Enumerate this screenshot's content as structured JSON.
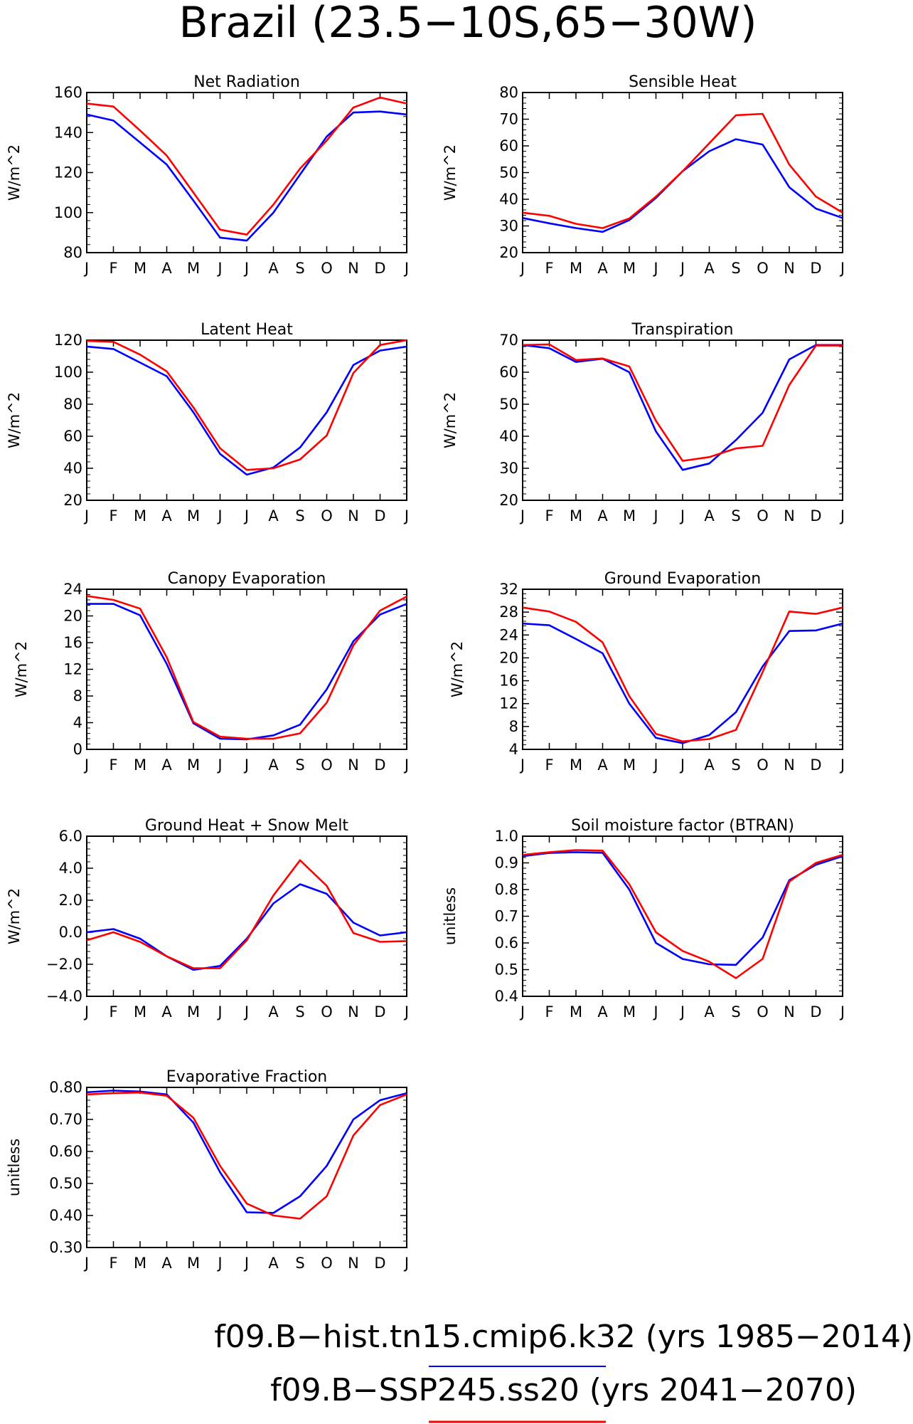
{
  "figure": {
    "title": "Brazil (23.5−10S,65−30W)",
    "colors": {
      "hist": "#0000ff",
      "ssp": "#ff0000",
      "axis": "#000000"
    }
  },
  "legend": [
    {
      "text": "f09.B−hist.tn15.cmip6.k32 (yrs 1985−2014)",
      "color": "#0000ff"
    },
    {
      "text": "f09.B−SSP245.ss20 (yrs 2041−2070)",
      "color": "#ff0000"
    }
  ],
  "chart_data": [
    {
      "type": "line",
      "title": "Net Radiation",
      "ylabel": "W/m^2",
      "categories": [
        "J",
        "F",
        "M",
        "A",
        "M",
        "J",
        "J",
        "A",
        "S",
        "O",
        "N",
        "D",
        "J"
      ],
      "ylim": [
        80,
        160
      ],
      "yticks": [
        80,
        100,
        120,
        140,
        160
      ],
      "ytick_labels": [
        "80",
        "100",
        "120",
        "140",
        "160"
      ],
      "series": [
        {
          "values": [
            149,
            146,
            135,
            124,
            106,
            87.5,
            86,
            100,
            119,
            138,
            150,
            150.5,
            149
          ],
          "color": "#0000ff"
        },
        {
          "values": [
            154.5,
            153,
            141,
            128.5,
            110,
            91.5,
            89,
            104,
            122,
            136,
            152.5,
            157.5,
            154.5
          ],
          "color": "#ff0000"
        }
      ]
    },
    {
      "type": "line",
      "title": "Sensible Heat",
      "ylabel": "W/m^2",
      "categories": [
        "J",
        "F",
        "M",
        "A",
        "M",
        "J",
        "J",
        "A",
        "S",
        "O",
        "N",
        "D",
        "J"
      ],
      "ylim": [
        20,
        80
      ],
      "yticks": [
        20,
        30,
        40,
        50,
        60,
        70,
        80
      ],
      "ytick_labels": [
        "20",
        "30",
        "40",
        "50",
        "60",
        "70",
        "80"
      ],
      "series": [
        {
          "values": [
            33,
            31,
            29.2,
            27.8,
            32.2,
            40.5,
            50.5,
            58,
            62.5,
            60.5,
            44.5,
            36.5,
            33
          ],
          "color": "#0000ff"
        },
        {
          "values": [
            35,
            33.8,
            30.8,
            29.2,
            32.8,
            41,
            50.5,
            61,
            71.5,
            72,
            53,
            41,
            35
          ],
          "color": "#ff0000"
        }
      ]
    },
    {
      "type": "line",
      "title": "Latent Heat",
      "ylabel": "W/m^2",
      "categories": [
        "J",
        "F",
        "M",
        "A",
        "M",
        "J",
        "J",
        "A",
        "S",
        "O",
        "N",
        "D",
        "J"
      ],
      "ylim": [
        20,
        120
      ],
      "yticks": [
        20,
        40,
        60,
        80,
        100,
        120
      ],
      "ytick_labels": [
        "20",
        "40",
        "60",
        "80",
        "100",
        "120"
      ],
      "series": [
        {
          "values": [
            116,
            114.5,
            106,
            97.5,
            75,
            49,
            36,
            40.5,
            53,
            75,
            104.5,
            113.5,
            116
          ],
          "color": "#0000ff"
        },
        {
          "values": [
            119.5,
            119,
            111,
            100.5,
            78,
            52.5,
            39,
            40,
            45.5,
            60.5,
            99.5,
            117,
            120
          ],
          "color": "#ff0000"
        }
      ]
    },
    {
      "type": "line",
      "title": "Transpiration",
      "ylabel": "W/m^2",
      "categories": [
        "J",
        "F",
        "M",
        "A",
        "M",
        "J",
        "J",
        "A",
        "S",
        "O",
        "N",
        "D",
        "J"
      ],
      "ylim": [
        20,
        70
      ],
      "yticks": [
        20,
        30,
        40,
        50,
        60,
        70
      ],
      "ytick_labels": [
        "20",
        "30",
        "40",
        "50",
        "60",
        "70"
      ],
      "series": [
        {
          "values": [
            68.5,
            67.5,
            63.2,
            64.2,
            60,
            41.5,
            29.5,
            31.5,
            38.8,
            47.3,
            64,
            68.5,
            68.5
          ],
          "color": "#0000ff"
        },
        {
          "values": [
            68.5,
            68.7,
            63.8,
            64.3,
            61.8,
            44.8,
            32.3,
            33.5,
            36.2,
            37,
            56,
            68.3,
            68.3
          ],
          "color": "#ff0000"
        }
      ]
    },
    {
      "type": "line",
      "title": "Canopy Evaporation",
      "ylabel": "W/m^2",
      "categories": [
        "J",
        "F",
        "M",
        "A",
        "M",
        "J",
        "J",
        "A",
        "S",
        "O",
        "N",
        "D",
        "J"
      ],
      "ylim": [
        0,
        24
      ],
      "yticks": [
        0,
        4,
        8,
        12,
        16,
        20,
        24
      ],
      "ytick_labels": [
        "0",
        "4",
        "8",
        "12",
        "16",
        "20",
        "24"
      ],
      "series": [
        {
          "values": [
            21.8,
            21.8,
            20.1,
            12.8,
            3.9,
            1.6,
            1.5,
            2.1,
            3.7,
            9,
            16.2,
            20.2,
            21.8
          ],
          "color": "#0000ff"
        },
        {
          "values": [
            23,
            22.4,
            21.1,
            13.8,
            4.1,
            1.9,
            1.6,
            1.6,
            2.4,
            7,
            15.6,
            20.8,
            22.9
          ],
          "color": "#ff0000"
        }
      ]
    },
    {
      "type": "line",
      "title": "Ground Evaporation",
      "ylabel": "W/m^2",
      "categories": [
        "J",
        "F",
        "M",
        "A",
        "M",
        "J",
        "J",
        "A",
        "S",
        "O",
        "N",
        "D",
        "J"
      ],
      "ylim": [
        4,
        32
      ],
      "yticks": [
        4,
        8,
        12,
        16,
        20,
        24,
        28,
        32
      ],
      "ytick_labels": [
        "4",
        "8",
        "12",
        "16",
        "20",
        "24",
        "28",
        "32"
      ],
      "series": [
        {
          "values": [
            26,
            25.7,
            23.3,
            20.8,
            12,
            6,
            5.1,
            6.5,
            10.5,
            18.5,
            24.7,
            24.8,
            26
          ],
          "color": "#0000ff"
        },
        {
          "values": [
            28.8,
            28.1,
            26.3,
            22.7,
            13.3,
            6.7,
            5.4,
            5.8,
            7.4,
            17.5,
            28.1,
            27.7,
            28.8
          ],
          "color": "#ff0000"
        }
      ]
    },
    {
      "type": "line",
      "title": "Ground Heat + Snow Melt",
      "ylabel": "W/m^2",
      "categories": [
        "J",
        "F",
        "M",
        "A",
        "M",
        "J",
        "J",
        "A",
        "S",
        "O",
        "N",
        "D",
        "J"
      ],
      "ylim": [
        -4,
        6
      ],
      "yticks": [
        -4,
        -2,
        0,
        2,
        4,
        6
      ],
      "ytick_labels": [
        "−4.0",
        "−2.0",
        "0.0",
        "2.0",
        "4.0",
        "6.0"
      ],
      "series": [
        {
          "values": [
            0,
            0.2,
            -0.4,
            -1.5,
            -2.35,
            -2.1,
            -0.4,
            1.8,
            3,
            2.4,
            0.6,
            -0.2,
            0
          ],
          "color": "#0000ff"
        },
        {
          "values": [
            -0.5,
            0,
            -0.6,
            -1.5,
            -2.25,
            -2.25,
            -0.5,
            2.3,
            4.5,
            2.9,
            -0.05,
            -0.6,
            -0.55
          ],
          "color": "#ff0000"
        }
      ]
    },
    {
      "type": "line",
      "title": "Soil moisture factor (BTRAN)",
      "ylabel": "unitless",
      "categories": [
        "J",
        "F",
        "M",
        "A",
        "M",
        "J",
        "J",
        "A",
        "S",
        "O",
        "N",
        "D",
        "J"
      ],
      "ylim": [
        0.4,
        1.0
      ],
      "yticks": [
        0.4,
        0.5,
        0.6,
        0.7,
        0.8,
        0.9,
        1.0
      ],
      "ytick_labels": [
        "0.4",
        "0.5",
        "0.6",
        "0.7",
        "0.8",
        "0.9",
        "1.0"
      ],
      "series": [
        {
          "values": [
            0.925,
            0.937,
            0.94,
            0.938,
            0.8,
            0.6,
            0.54,
            0.52,
            0.518,
            0.62,
            0.835,
            0.893,
            0.925
          ],
          "color": "#0000ff"
        },
        {
          "values": [
            0.93,
            0.94,
            0.948,
            0.946,
            0.82,
            0.64,
            0.57,
            0.53,
            0.468,
            0.54,
            0.83,
            0.9,
            0.93
          ],
          "color": "#ff0000"
        }
      ]
    },
    {
      "type": "line",
      "title": "Evaporative Fraction",
      "ylabel": "unitless",
      "categories": [
        "J",
        "F",
        "M",
        "A",
        "M",
        "J",
        "J",
        "A",
        "S",
        "O",
        "N",
        "D",
        "J"
      ],
      "ylim": [
        0.3,
        0.8
      ],
      "yticks": [
        0.3,
        0.4,
        0.5,
        0.6,
        0.7,
        0.8
      ],
      "ytick_labels": [
        "0.30",
        "0.40",
        "0.50",
        "0.60",
        "0.70",
        "0.80"
      ],
      "series": [
        {
          "values": [
            0.785,
            0.79,
            0.787,
            0.778,
            0.69,
            0.535,
            0.41,
            0.408,
            0.46,
            0.555,
            0.7,
            0.76,
            0.782
          ],
          "color": "#0000ff"
        },
        {
          "values": [
            0.778,
            0.782,
            0.784,
            0.774,
            0.705,
            0.555,
            0.437,
            0.4,
            0.39,
            0.46,
            0.65,
            0.745,
            0.778
          ],
          "color": "#ff0000"
        }
      ]
    }
  ]
}
